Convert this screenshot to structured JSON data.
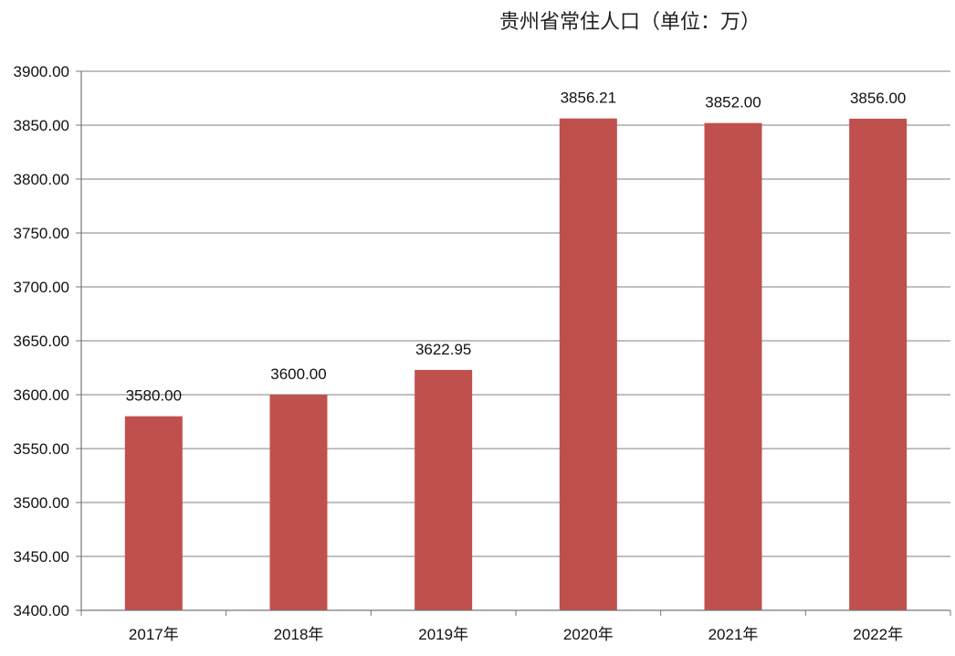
{
  "chart_data": {
    "type": "bar",
    "title": "贵州省常住人口（单位：万）",
    "categories": [
      "2017年",
      "2018年",
      "2019年",
      "2020年",
      "2021年",
      "2022年"
    ],
    "values": [
      3580.0,
      3600.0,
      3622.95,
      3856.21,
      3852.0,
      3856.0
    ],
    "value_labels": [
      "3580.00",
      "3600.00",
      "3622.95",
      "3856.21",
      "3852.00",
      "3856.00"
    ],
    "ylim": [
      3400,
      3900
    ],
    "yticks": [
      "3400.00",
      "3450.00",
      "3500.00",
      "3550.00",
      "3600.00",
      "3650.00",
      "3700.00",
      "3750.00",
      "3800.00",
      "3850.00",
      "3900.00"
    ],
    "xlabel": "",
    "ylabel": "",
    "grid": true,
    "bar_color": "#c0504d",
    "grid_color": "#9a9a9a"
  }
}
